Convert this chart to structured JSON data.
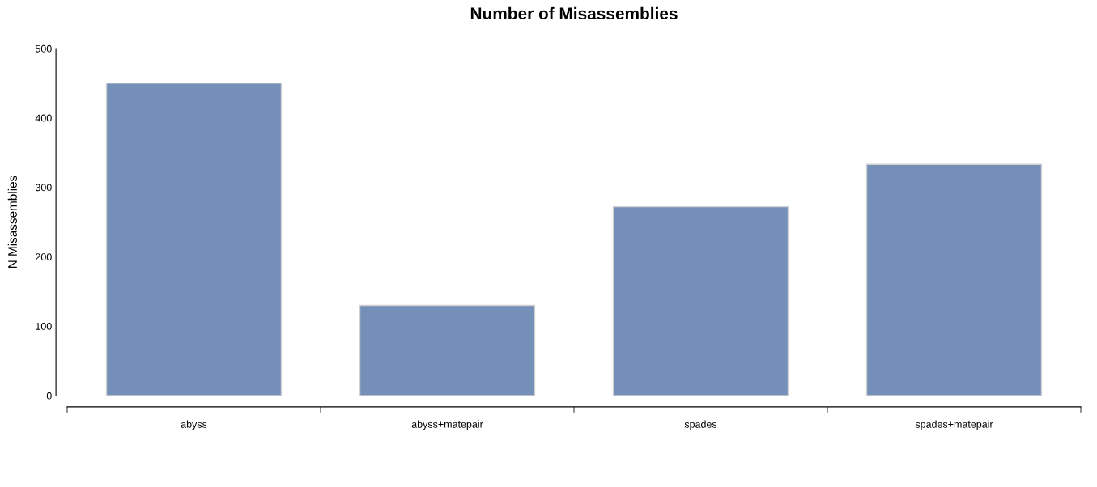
{
  "chart_data": {
    "type": "bar",
    "title": "Number of Misassemblies",
    "ylabel": "N Misassemblies",
    "categories": [
      "abyss",
      "abyss+matepair",
      "spades",
      "spades+matepair"
    ],
    "values": [
      450,
      130,
      272,
      333
    ],
    "color": "#7590b8",
    "ylim": [
      0,
      500
    ],
    "yticks": [
      0,
      100,
      200,
      300,
      400,
      500
    ],
    "grid": false,
    "legend": false
  }
}
